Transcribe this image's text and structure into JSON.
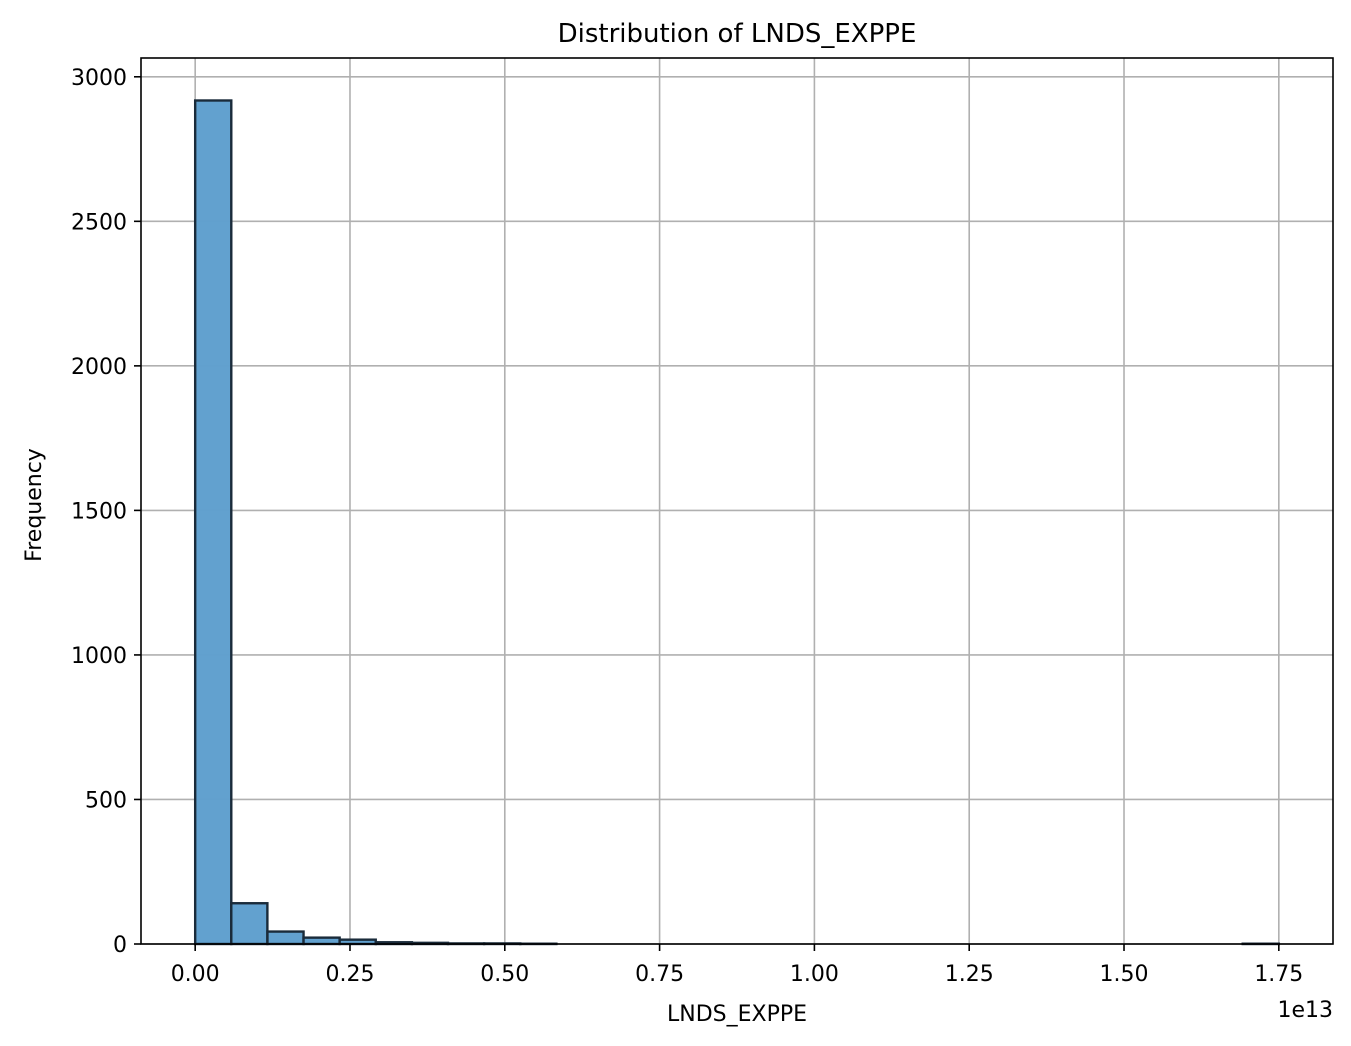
{
  "chart_data": {
    "type": "bar",
    "title": "Distribution of LNDS_EXPPE",
    "xlabel": "LNDS_EXPPE",
    "ylabel": "Frequency",
    "x_offset_label": "1e13",
    "x_tick_values": [
      0.0,
      0.25,
      0.5,
      0.75,
      1.0,
      1.25,
      1.5,
      1.75
    ],
    "x_tick_labels": [
      "0.00",
      "0.25",
      "0.50",
      "0.75",
      "1.00",
      "1.25",
      "1.50",
      "1.75"
    ],
    "y_tick_values": [
      0,
      500,
      1000,
      1500,
      2000,
      2500,
      3000
    ],
    "y_tick_labels": [
      "0",
      "500",
      "1000",
      "1500",
      "2000",
      "2500",
      "3000"
    ],
    "xlim": [
      -0.0875,
      1.8375
    ],
    "ylim": [
      0,
      3065
    ],
    "grid": true,
    "bar_color": "#5f9fce",
    "bar_edge_color": "#1a2b3a",
    "bin_width": 0.0583,
    "bins": [
      {
        "x0": 0.0,
        "value": 2918
      },
      {
        "x0": 0.0583,
        "value": 141
      },
      {
        "x0": 0.1167,
        "value": 43
      },
      {
        "x0": 0.175,
        "value": 22
      },
      {
        "x0": 0.2333,
        "value": 15
      },
      {
        "x0": 0.2917,
        "value": 6
      },
      {
        "x0": 0.35,
        "value": 4
      },
      {
        "x0": 0.4083,
        "value": 2
      },
      {
        "x0": 0.4667,
        "value": 2
      },
      {
        "x0": 0.525,
        "value": 1
      },
      {
        "x0": 0.5833,
        "value": 0
      },
      {
        "x0": 0.6417,
        "value": 0
      },
      {
        "x0": 0.7,
        "value": 0
      },
      {
        "x0": 0.7583,
        "value": 0
      },
      {
        "x0": 0.8167,
        "value": 0
      },
      {
        "x0": 0.875,
        "value": 0
      },
      {
        "x0": 0.9333,
        "value": 0
      },
      {
        "x0": 0.9917,
        "value": 0
      },
      {
        "x0": 1.05,
        "value": 0
      },
      {
        "x0": 1.1083,
        "value": 0
      },
      {
        "x0": 1.1667,
        "value": 0
      },
      {
        "x0": 1.225,
        "value": 0
      },
      {
        "x0": 1.2833,
        "value": 0
      },
      {
        "x0": 1.3417,
        "value": 0
      },
      {
        "x0": 1.4,
        "value": 0
      },
      {
        "x0": 1.4583,
        "value": 0
      },
      {
        "x0": 1.5167,
        "value": 0
      },
      {
        "x0": 1.575,
        "value": 0
      },
      {
        "x0": 1.6333,
        "value": 0
      },
      {
        "x0": 1.6917,
        "value": 1
      }
    ]
  }
}
